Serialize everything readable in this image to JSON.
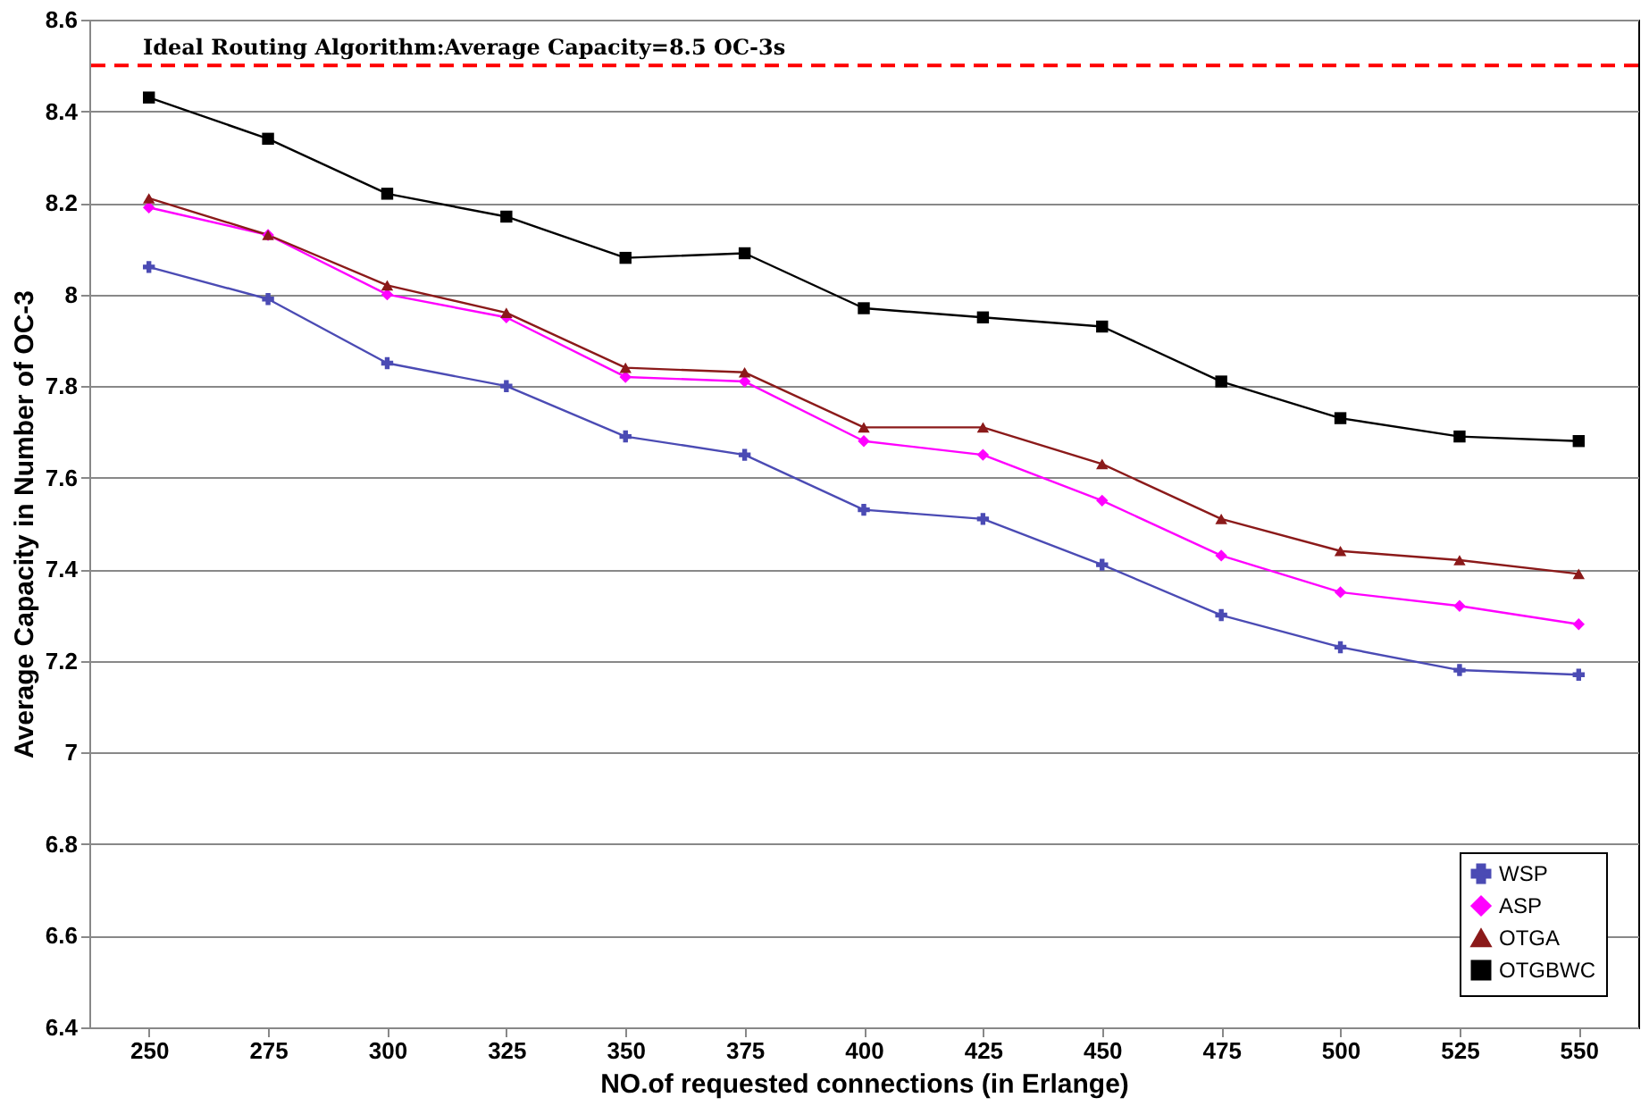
{
  "chart_data": {
    "type": "line",
    "xlabel": "NO.of requested connections (in Erlange)",
    "ylabel": "Average Capacity in Number of OC-3",
    "categories": [
      "250",
      "275",
      "300",
      "325",
      "350",
      "375",
      "400",
      "425",
      "450",
      "475",
      "500",
      "525",
      "550"
    ],
    "ylim": [
      6.4,
      8.6
    ],
    "yticks": [
      6.4,
      6.6,
      6.8,
      7,
      7.2,
      7.4,
      7.6,
      7.8,
      8,
      8.2,
      8.4,
      8.6
    ],
    "grid": "y",
    "legend": "bottom right",
    "series": [
      {
        "name": "WSP",
        "color": "#4b4bb4",
        "marker": "cross",
        "values": [
          8.06,
          7.99,
          7.85,
          7.8,
          7.69,
          7.65,
          7.53,
          7.51,
          7.41,
          7.3,
          7.23,
          7.18,
          7.17
        ]
      },
      {
        "name": "ASP",
        "color": "#ff00ff",
        "marker": "diamond",
        "values": [
          8.19,
          8.13,
          8.0,
          7.95,
          7.82,
          7.81,
          7.68,
          7.65,
          7.55,
          7.43,
          7.35,
          7.32,
          7.28
        ]
      },
      {
        "name": "OTGA",
        "color": "#8b1a1a",
        "marker": "triangle",
        "values": [
          8.21,
          8.13,
          8.02,
          7.96,
          7.84,
          7.83,
          7.71,
          7.71,
          7.63,
          7.51,
          7.44,
          7.42,
          7.39
        ]
      },
      {
        "name": "OTGBWC",
        "color": "#000000",
        "marker": "square",
        "values": [
          8.43,
          8.34,
          8.22,
          8.17,
          8.08,
          8.09,
          7.97,
          7.95,
          7.93,
          7.81,
          7.73,
          7.69,
          7.68
        ]
      }
    ],
    "ref_lines": [
      {
        "axis": "y",
        "value": 8.5,
        "label": "Ideal Routing Algorithm:Average Capacity=8.5 OC-3s",
        "color": "#ff0000",
        "line_style": "dashed"
      }
    ]
  }
}
